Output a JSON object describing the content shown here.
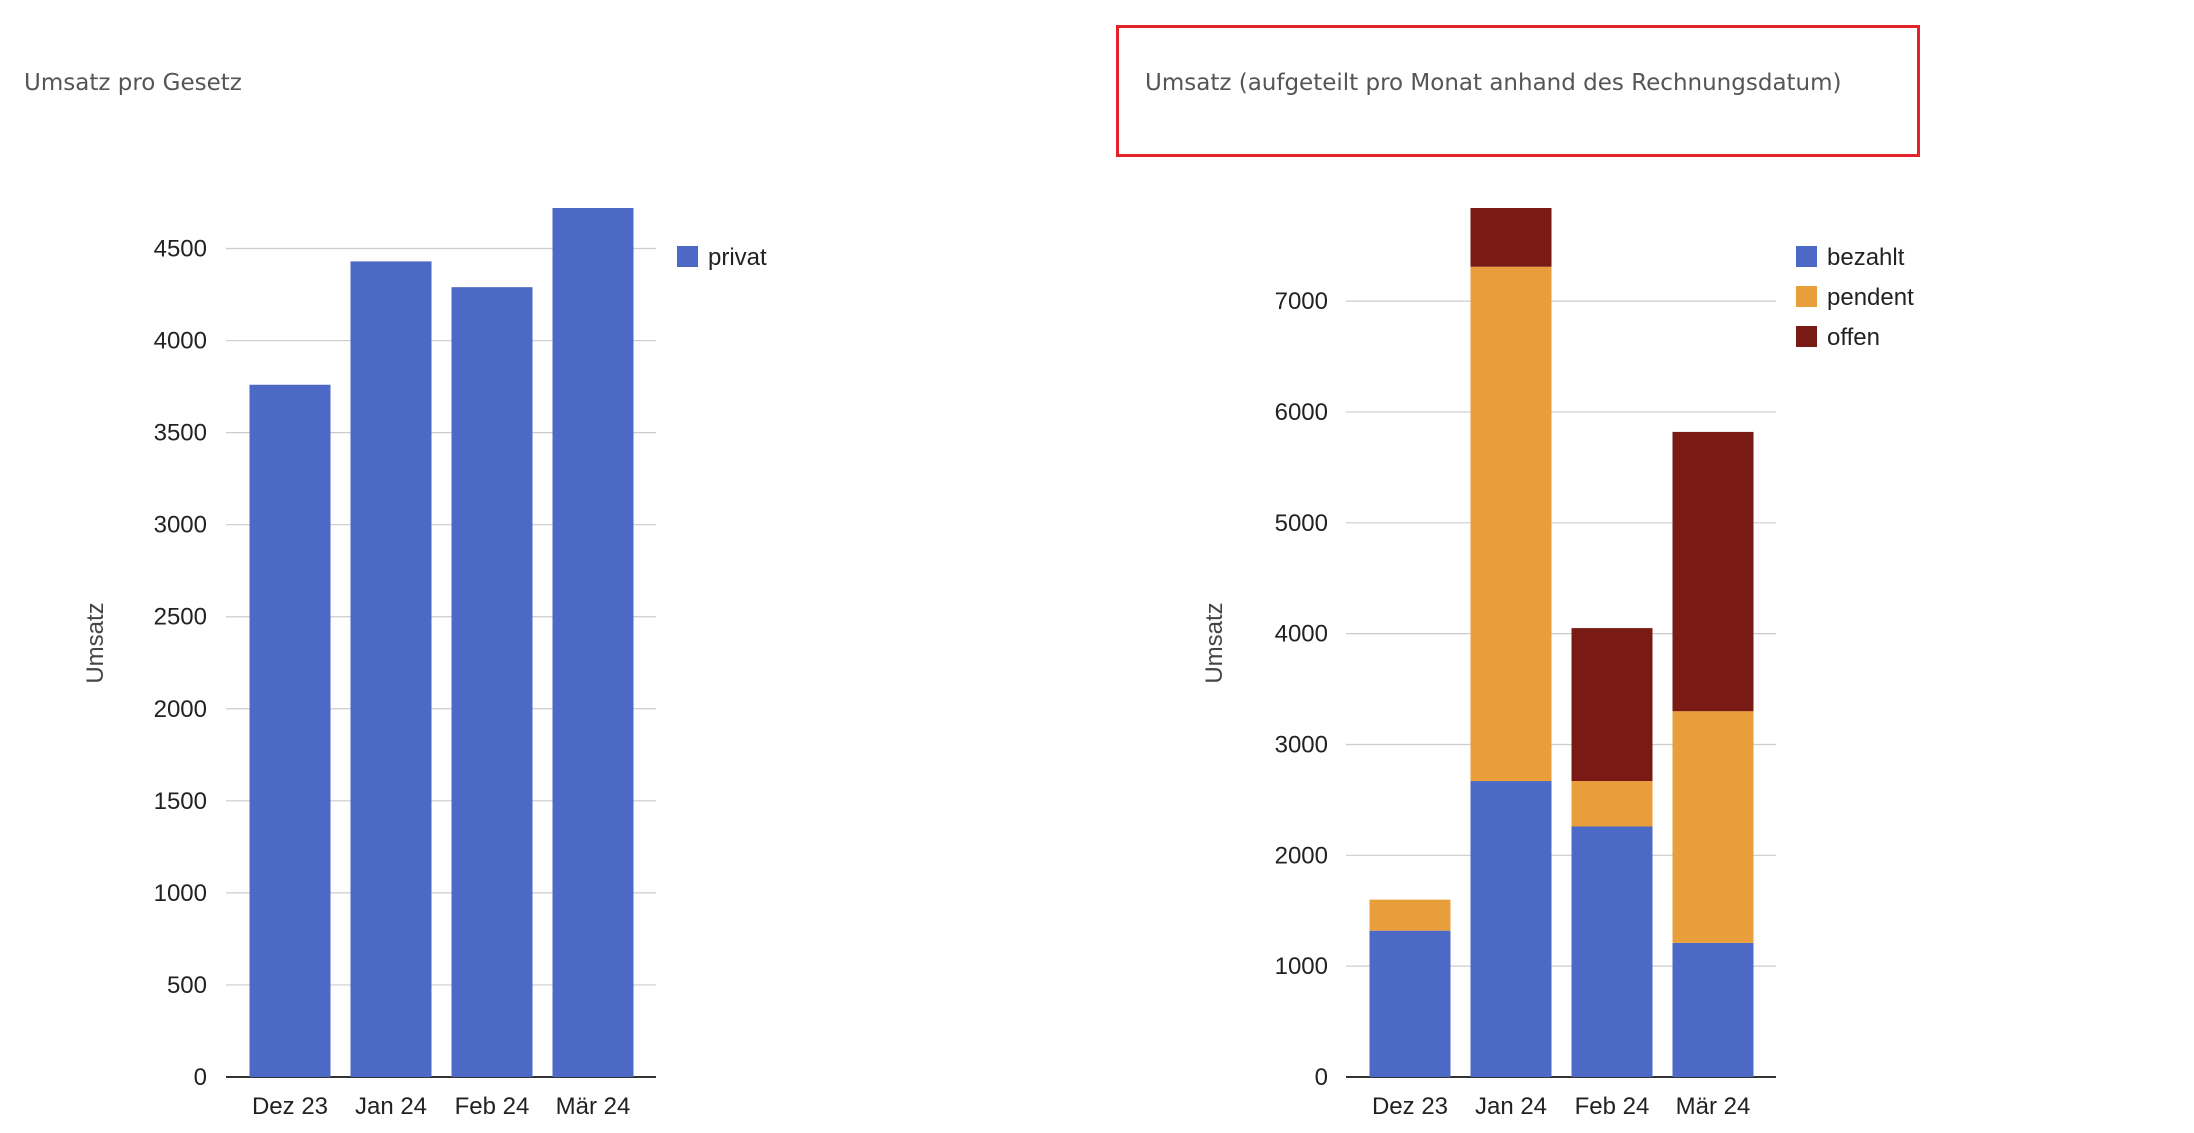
{
  "chart_data": [
    {
      "type": "bar",
      "title": "Umsatz pro Gesetz",
      "ylabel": "Umsatz",
      "categories": [
        "Dez 23",
        "Jan 24",
        "Feb 24",
        "Mär 24"
      ],
      "series": [
        {
          "name": "privat",
          "color": "#4c69c6",
          "values": [
            3760,
            4430,
            4290,
            4720
          ]
        }
      ],
      "ylim": [
        0,
        4720
      ],
      "yticks": [
        0,
        500,
        1000,
        1500,
        2000,
        2500,
        3000,
        3500,
        4000,
        4500
      ],
      "grid": true,
      "legend": "right"
    },
    {
      "type": "bar",
      "stacked": true,
      "title": "Umsatz (aufgeteilt pro Monat anhand des Rechnungsdatum)",
      "ylabel": "Umsatz",
      "categories": [
        "Dez 23",
        "Jan 24",
        "Feb 24",
        "Mär 24"
      ],
      "series": [
        {
          "name": "bezahlt",
          "color": "#4c69c6",
          "values": [
            1320,
            2670,
            2260,
            1210
          ]
        },
        {
          "name": "pendent",
          "color": "#e89e3a",
          "values": [
            280,
            4640,
            410,
            2090
          ]
        },
        {
          "name": "offen",
          "color": "#7a1a14",
          "values": [
            0,
            530,
            1380,
            2520
          ]
        }
      ],
      "ylim": [
        0,
        7840
      ],
      "yticks": [
        0,
        1000,
        2000,
        3000,
        4000,
        5000,
        6000,
        7000
      ],
      "grid": true,
      "legend": "right"
    }
  ]
}
